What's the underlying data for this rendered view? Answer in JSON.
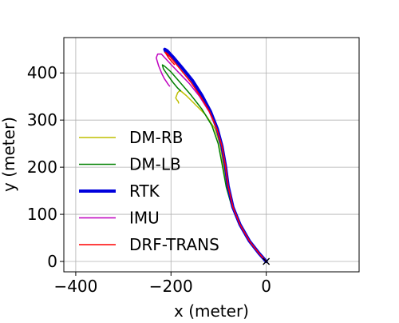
{
  "chart_data": {
    "type": "line",
    "xlabel": "x (meter)",
    "ylabel": "y (meter)",
    "xlim": [
      -425,
      195
    ],
    "ylim": [
      -22,
      475
    ],
    "xticks": [
      -400,
      -200,
      0
    ],
    "yticks": [
      0,
      100,
      200,
      300,
      400
    ],
    "xtick_labels": [
      "−400",
      "−200",
      "0"
    ],
    "ytick_labels": [
      "0",
      "100",
      "200",
      "300",
      "400"
    ],
    "grid": true,
    "legend_position": "lower-left",
    "end_marker": {
      "x": 0,
      "y": 0,
      "symbol": "×"
    },
    "series": [
      {
        "name": "DM-RB",
        "color": "#bfbf00",
        "width": 1.5,
        "points": [
          [
            0,
            0
          ],
          [
            -15,
            17
          ],
          [
            -35,
            43
          ],
          [
            -55,
            78
          ],
          [
            -70,
            112
          ],
          [
            -82,
            155
          ],
          [
            -90,
            205
          ],
          [
            -97,
            248
          ],
          [
            -108,
            282
          ],
          [
            -128,
            312
          ],
          [
            -150,
            334
          ],
          [
            -168,
            352
          ],
          [
            -181,
            363
          ],
          [
            -186,
            358
          ],
          [
            -190,
            347
          ],
          [
            -187,
            342
          ],
          [
            -185,
            340
          ],
          [
            -184,
            336
          ]
        ]
      },
      {
        "name": "DM-LB",
        "color": "#008000",
        "width": 1.5,
        "points": [
          [
            0,
            0
          ],
          [
            -15,
            17
          ],
          [
            -35,
            43
          ],
          [
            -55,
            78
          ],
          [
            -72,
            115
          ],
          [
            -84,
            158
          ],
          [
            -93,
            208
          ],
          [
            -101,
            250
          ],
          [
            -114,
            288
          ],
          [
            -135,
            323
          ],
          [
            -158,
            353
          ],
          [
            -181,
            380
          ],
          [
            -201,
            403
          ],
          [
            -213,
            414
          ],
          [
            -218,
            417
          ],
          [
            -216,
            409
          ],
          [
            -208,
            397
          ],
          [
            -196,
            380
          ],
          [
            -186,
            368
          ],
          [
            -180,
            362
          ]
        ]
      },
      {
        "name": "RTK",
        "color": "#0000dd",
        "width": 4,
        "points": [
          [
            0,
            0
          ],
          [
            -15,
            17
          ],
          [
            -35,
            43
          ],
          [
            -55,
            78
          ],
          [
            -70,
            115
          ],
          [
            -80,
            160
          ],
          [
            -86,
            205
          ],
          [
            -93,
            245
          ],
          [
            -103,
            282
          ],
          [
            -117,
            318
          ],
          [
            -135,
            352
          ],
          [
            -155,
            384
          ],
          [
            -176,
            410
          ],
          [
            -196,
            434
          ],
          [
            -208,
            447
          ],
          [
            -213,
            450
          ],
          [
            -211,
            445
          ],
          [
            -206,
            440
          ],
          [
            -202,
            437
          ]
        ]
      },
      {
        "name": "IMU",
        "color": "#bf00bf",
        "width": 1.5,
        "points": [
          [
            0,
            0
          ],
          [
            -15,
            17
          ],
          [
            -35,
            43
          ],
          [
            -55,
            78
          ],
          [
            -70,
            115
          ],
          [
            -80,
            160
          ],
          [
            -86,
            205
          ],
          [
            -93,
            245
          ],
          [
            -104,
            282
          ],
          [
            -120,
            318
          ],
          [
            -140,
            350
          ],
          [
            -162,
            378
          ],
          [
            -183,
            400
          ],
          [
            -200,
            418
          ],
          [
            -212,
            431
          ],
          [
            -220,
            440
          ],
          [
            -228,
            440
          ],
          [
            -231,
            432
          ],
          [
            -226,
            415
          ],
          [
            -219,
            398
          ],
          [
            -214,
            388
          ],
          [
            -210,
            382
          ],
          [
            -206,
            376
          ],
          [
            -203,
            372
          ]
        ]
      },
      {
        "name": "DRF-TRANS",
        "color": "#ff0000",
        "width": 1.5,
        "points": [
          [
            0,
            0
          ],
          [
            -15,
            17
          ],
          [
            -35,
            43
          ],
          [
            -55,
            78
          ],
          [
            -70,
            115
          ],
          [
            -80,
            160
          ],
          [
            -86,
            205
          ],
          [
            -93,
            245
          ],
          [
            -104,
            282
          ],
          [
            -119,
            318
          ],
          [
            -138,
            350
          ],
          [
            -158,
            380
          ],
          [
            -178,
            405
          ],
          [
            -196,
            427
          ],
          [
            -207,
            440
          ],
          [
            -212,
            444
          ],
          [
            -210,
            440
          ],
          [
            -205,
            432
          ],
          [
            -199,
            425
          ],
          [
            -193,
            418
          ]
        ]
      }
    ]
  }
}
